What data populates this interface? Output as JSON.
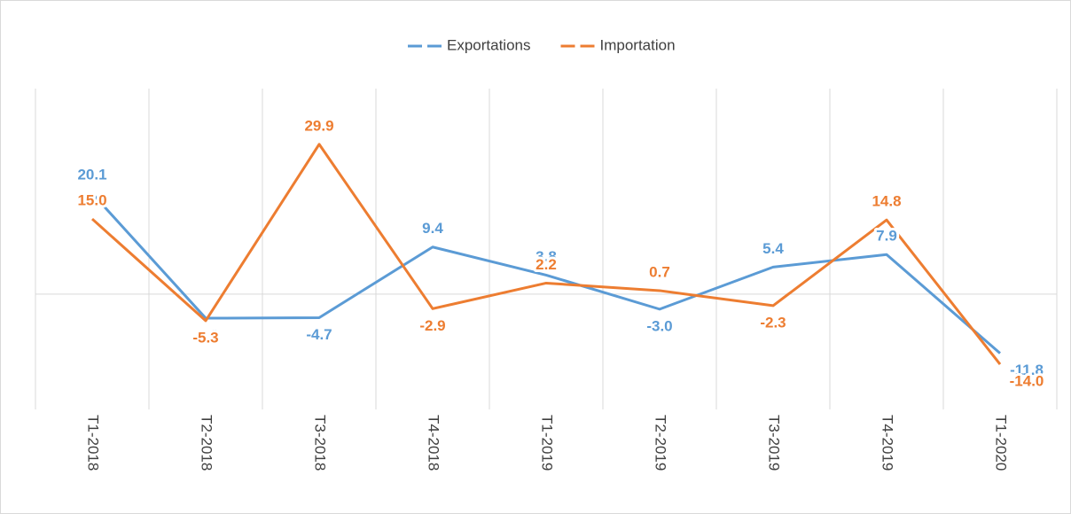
{
  "chart_data": {
    "type": "line",
    "categories": [
      "T1-2018",
      "T2-2018",
      "T3-2018",
      "T4-2018",
      "T1-2019",
      "T2-2019",
      "T3-2019",
      "T4-2019",
      "T1-2020"
    ],
    "series": [
      {
        "name": "Exportations",
        "color": "#5b9bd5",
        "values": [
          20.1,
          -4.8,
          -4.7,
          9.4,
          3.8,
          -3.0,
          5.4,
          7.9,
          -11.8
        ],
        "value_labels": [
          "20.1",
          "-4.8",
          "-4.7",
          "9.4",
          "3.8",
          "-3.0",
          "5.4",
          "7.9",
          "-11.8"
        ]
      },
      {
        "name": "Importation",
        "color": "#ed7d31",
        "values": [
          15.0,
          -5.3,
          29.9,
          -2.9,
          2.2,
          0.7,
          -2.3,
          14.8,
          -14.0
        ],
        "value_labels": [
          "15.0",
          "-5.3",
          "29.9",
          "-2.9",
          "2.2",
          "0.7",
          "-2.3",
          "14.8",
          "-14.0"
        ]
      }
    ],
    "ylim": [
      -23,
      41
    ],
    "legend": "top",
    "grid": true
  }
}
